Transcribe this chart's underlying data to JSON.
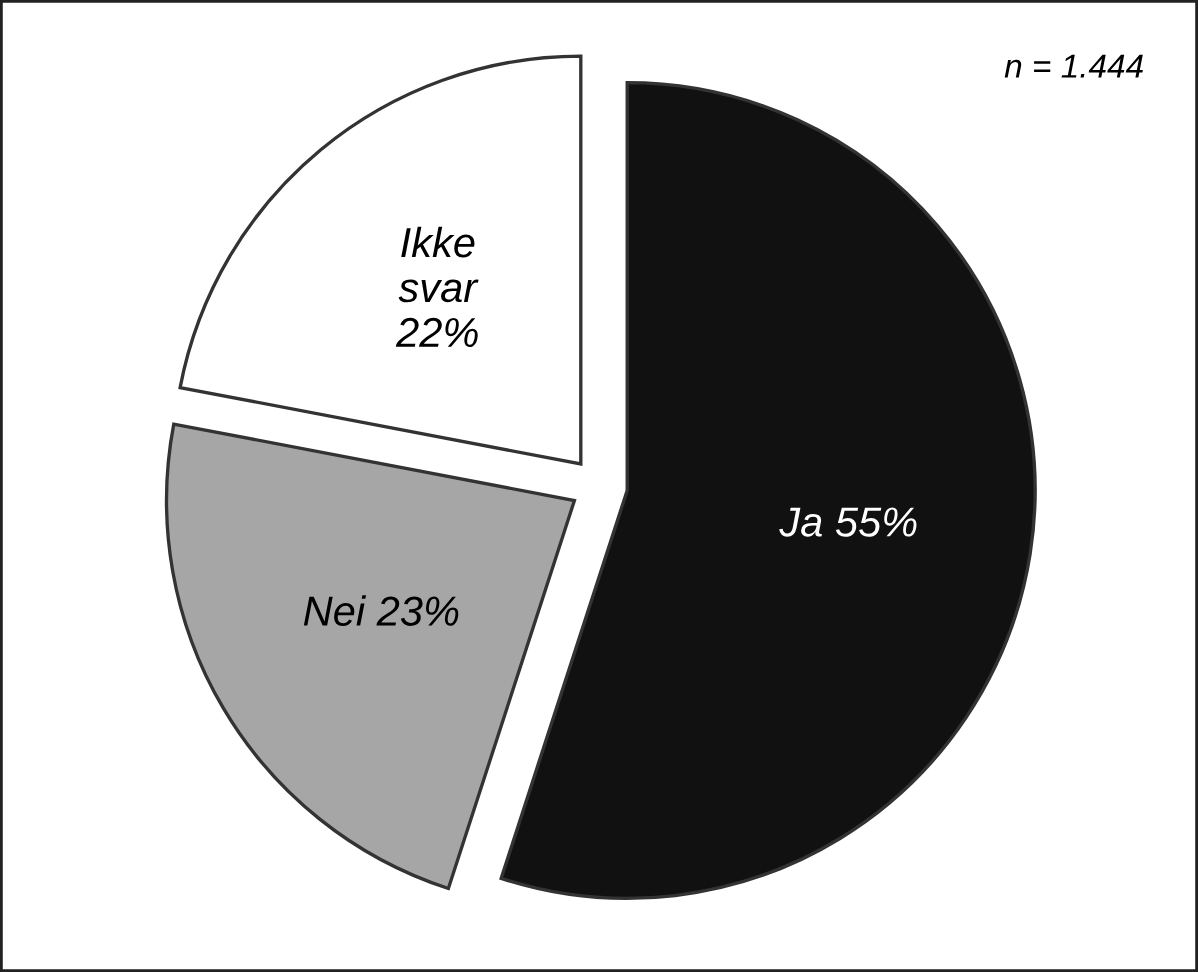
{
  "chart_data": {
    "type": "pie",
    "categories": [
      "Ja",
      "Nei",
      "Ikke svar"
    ],
    "values": [
      55,
      23,
      22
    ],
    "colors": [
      "#111111",
      "#a6a6a6",
      "#ffffff"
    ],
    "value_labels": [
      "55%",
      "23%",
      "22%"
    ],
    "annotations": [
      "n = 1.444"
    ],
    "legend": false
  }
}
